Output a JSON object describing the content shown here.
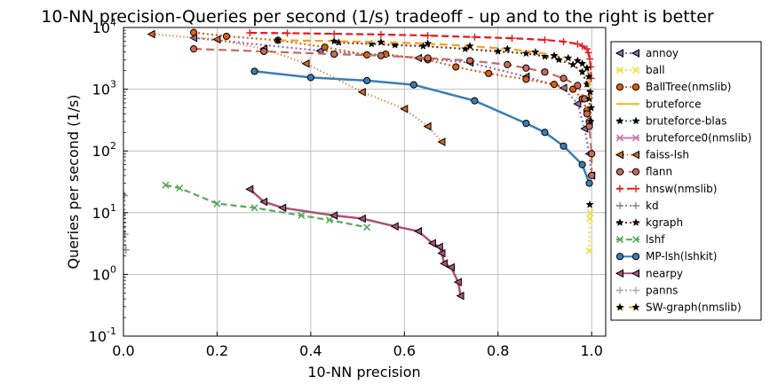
{
  "chart_data": {
    "type": "line",
    "title": "10-NN precision-Queries per second (1/s) tradeoff - up and to the right is better",
    "xlabel": "10-NN precision",
    "ylabel": "Queries per second (1/s)",
    "xlim": [
      0.0,
      1.03
    ],
    "ylim_log10": [
      -1,
      4
    ],
    "yscale": "log",
    "grid": true,
    "legend_position": "right",
    "xticks": [
      {
        "v": 0.0,
        "label": "0.0"
      },
      {
        "v": 0.2,
        "label": "0.2"
      },
      {
        "v": 0.4,
        "label": "0.4"
      },
      {
        "v": 0.6,
        "label": "0.6"
      },
      {
        "v": 0.8,
        "label": "0.8"
      },
      {
        "v": 1.0,
        "label": "1.0"
      }
    ],
    "yticks": [
      {
        "e": -1,
        "label": "10",
        "exp": "-1"
      },
      {
        "e": 0,
        "label": "10",
        "exp": "0"
      },
      {
        "e": 1,
        "label": "10",
        "exp": "1"
      },
      {
        "e": 2,
        "label": "10",
        "exp": "2"
      },
      {
        "e": 3,
        "label": "10",
        "exp": "3"
      },
      {
        "e": 4,
        "label": "10",
        "exp": "4"
      }
    ],
    "series": [
      {
        "name": "annoy",
        "color": "#8c6bb1",
        "dash": "2,3",
        "marker": "tri-left",
        "points": [
          [
            0.15,
            6800
          ],
          [
            0.42,
            4200
          ],
          [
            0.63,
            3200
          ],
          [
            0.74,
            2700
          ],
          [
            0.86,
            1600
          ],
          [
            0.94,
            1050
          ],
          [
            0.97,
            580
          ],
          [
            0.985,
            230
          ],
          [
            0.995,
            90
          ],
          [
            1.0,
            40
          ]
        ]
      },
      {
        "name": "ball",
        "color": "#f0e040",
        "dash": "2,3",
        "marker": "x",
        "points": [
          [
            0.995,
            2.4
          ],
          [
            0.996,
            8
          ],
          [
            0.997,
            10
          ]
        ]
      },
      {
        "name": "BallTree(nmslib)",
        "color": "#d95f0e",
        "dash": "2,3",
        "marker": "circle",
        "points": [
          [
            0.15,
            8300
          ],
          [
            0.22,
            7200
          ],
          [
            0.33,
            6200
          ],
          [
            0.43,
            4800
          ],
          [
            0.52,
            3600
          ],
          [
            0.56,
            3700
          ],
          [
            0.65,
            3000
          ],
          [
            0.71,
            2300
          ],
          [
            0.78,
            1800
          ],
          [
            0.86,
            1450
          ],
          [
            0.92,
            1200
          ],
          [
            0.96,
            1000
          ],
          [
            0.98,
            700
          ],
          [
            0.99,
            450
          ],
          [
            0.995,
            300
          ]
        ]
      },
      {
        "name": "bruteforce",
        "color": "#e8c020",
        "dash": "",
        "marker": "dash",
        "points": []
      },
      {
        "name": "bruteforce-blas",
        "color": "#3a8a50",
        "dash": "2,3",
        "marker": "star",
        "points": [
          [
            0.996,
            13.5
          ]
        ]
      },
      {
        "name": "bruteforce0(nmslib)",
        "color": "#c47eb0",
        "dash": "",
        "marker": "x",
        "points": []
      },
      {
        "name": "faiss-lsh",
        "color": "#d2691e",
        "dash": "1,3",
        "marker": "tri-left",
        "points": [
          [
            0.06,
            7800
          ],
          [
            0.2,
            6400
          ],
          [
            0.3,
            4500
          ],
          [
            0.39,
            2600
          ],
          [
            0.51,
            900
          ],
          [
            0.6,
            480
          ],
          [
            0.65,
            250
          ],
          [
            0.68,
            140
          ]
        ]
      },
      {
        "name": "flann",
        "color": "#c86a5a",
        "dash": "9,5",
        "marker": "circle",
        "points": [
          [
            0.15,
            4500
          ],
          [
            0.3,
            4100
          ],
          [
            0.45,
            3700
          ],
          [
            0.55,
            3500
          ],
          [
            0.65,
            3200
          ],
          [
            0.74,
            2900
          ],
          [
            0.82,
            2500
          ],
          [
            0.86,
            2200
          ],
          [
            0.9,
            1900
          ],
          [
            0.94,
            1500
          ],
          [
            0.97,
            1150
          ],
          [
            0.985,
            700
          ],
          [
            0.99,
            400
          ],
          [
            0.995,
            250
          ],
          [
            1.0,
            90
          ],
          [
            1.0,
            40
          ]
        ]
      },
      {
        "name": "hnsw(nmslib)",
        "color": "#e31a1c",
        "dash": "8,4",
        "marker": "plus",
        "points": [
          [
            0.27,
            8200
          ],
          [
            0.35,
            8100
          ],
          [
            0.45,
            7900
          ],
          [
            0.55,
            7700
          ],
          [
            0.65,
            7400
          ],
          [
            0.75,
            7000
          ],
          [
            0.83,
            6700
          ],
          [
            0.9,
            6300
          ],
          [
            0.94,
            5900
          ],
          [
            0.97,
            5400
          ],
          [
            0.98,
            5000
          ],
          [
            0.99,
            4500
          ],
          [
            0.993,
            3900
          ],
          [
            0.996,
            3100
          ],
          [
            0.998,
            2300
          ],
          [
            0.999,
            1500
          ]
        ]
      },
      {
        "name": "kd",
        "color": "#888888",
        "dash": "2,3",
        "marker": "plus",
        "points": [
          [
            0.002,
            19
          ],
          [
            0.003,
            4.5
          ],
          [
            0.005,
            2.5
          ]
        ]
      },
      {
        "name": "kgraph",
        "color": "#7f2704",
        "dash": "2,3",
        "marker": "star",
        "points": [
          [
            0.46,
            5700
          ],
          [
            0.53,
            5400
          ],
          [
            0.58,
            5200
          ],
          [
            0.64,
            5000
          ],
          [
            0.73,
            4500
          ],
          [
            0.8,
            4100
          ],
          [
            0.86,
            3800
          ],
          [
            0.9,
            3400
          ],
          [
            0.93,
            3000
          ],
          [
            0.96,
            2500
          ],
          [
            0.98,
            1900
          ],
          [
            0.99,
            1200
          ],
          [
            0.995,
            700
          ],
          [
            0.998,
            300
          ]
        ]
      },
      {
        "name": "lshf",
        "color": "#5aaa5a",
        "dash": "7,4",
        "marker": "x",
        "points": [
          [
            0.09,
            28
          ],
          [
            0.12,
            25
          ],
          [
            0.2,
            14
          ],
          [
            0.28,
            12
          ],
          [
            0.38,
            9
          ],
          [
            0.44,
            7.6
          ],
          [
            0.52,
            5.8
          ]
        ]
      },
      {
        "name": "MP-lsh(lshkit)",
        "color": "#3a7eb5",
        "dash": "",
        "marker": "circle",
        "points": [
          [
            0.28,
            1950
          ],
          [
            0.4,
            1550
          ],
          [
            0.52,
            1380
          ],
          [
            0.62,
            1180
          ],
          [
            0.75,
            650
          ],
          [
            0.86,
            280
          ],
          [
            0.9,
            200
          ],
          [
            0.94,
            120
          ],
          [
            0.98,
            60
          ],
          [
            0.995,
            30
          ]
        ]
      },
      {
        "name": "nearpy",
        "color": "#a9527a",
        "dash": "",
        "marker": "tri-left",
        "points": [
          [
            0.27,
            24
          ],
          [
            0.3,
            15
          ],
          [
            0.34,
            12
          ],
          [
            0.45,
            9
          ],
          [
            0.51,
            8
          ],
          [
            0.58,
            6
          ],
          [
            0.63,
            5
          ],
          [
            0.66,
            3.2
          ],
          [
            0.675,
            2.8
          ],
          [
            0.68,
            2.2
          ],
          [
            0.685,
            1.5
          ],
          [
            0.7,
            1.3
          ],
          [
            0.715,
            0.75
          ],
          [
            0.72,
            0.45
          ]
        ]
      },
      {
        "name": "panns",
        "color": "#aaaaaa",
        "dash": "2,3",
        "marker": "plus",
        "points": []
      },
      {
        "name": "SW-graph(nmslib)",
        "color": "#f2a11f",
        "dash": "9,5",
        "marker": "star",
        "points": [
          [
            0.33,
            6200
          ],
          [
            0.45,
            6000
          ],
          [
            0.55,
            5800
          ],
          [
            0.65,
            5500
          ],
          [
            0.74,
            5000
          ],
          [
            0.82,
            4500
          ],
          [
            0.88,
            4000
          ],
          [
            0.92,
            3500
          ],
          [
            0.95,
            3200
          ],
          [
            0.97,
            2900
          ],
          [
            0.98,
            2600
          ],
          [
            0.99,
            2200
          ],
          [
            0.994,
            1600
          ],
          [
            0.997,
            900
          ],
          [
            0.999,
            500
          ]
        ]
      }
    ]
  }
}
